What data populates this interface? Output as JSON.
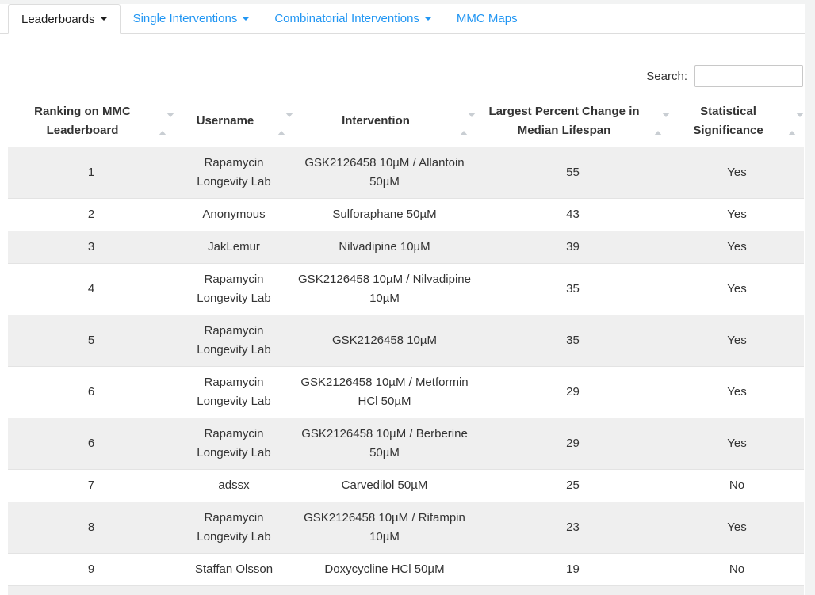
{
  "tabs": [
    {
      "label": "Leaderboards",
      "caret": true,
      "active": true
    },
    {
      "label": "Single Interventions",
      "caret": true,
      "active": false
    },
    {
      "label": "Combinatorial Interventions",
      "caret": true,
      "active": false
    },
    {
      "label": "MMC Maps",
      "caret": false,
      "active": false
    }
  ],
  "search": {
    "label": "Search:",
    "value": "",
    "placeholder": ""
  },
  "table": {
    "columns": [
      "Ranking on MMC Leaderboard",
      "Username",
      "Intervention",
      "Largest Percent Change in Median Lifespan",
      "Statistical Significance"
    ],
    "rows": [
      [
        "1",
        "Rapamycin Longevity Lab",
        "GSK2126458 10µM / Allantoin 50µM",
        "55",
        "Yes"
      ],
      [
        "2",
        "Anonymous",
        "Sulforaphane 50µM",
        "43",
        "Yes"
      ],
      [
        "3",
        "JakLemur",
        "Nilvadipine 10µM",
        "39",
        "Yes"
      ],
      [
        "4",
        "Rapamycin Longevity Lab",
        "GSK2126458 10µM / Nilvadipine 10µM",
        "35",
        "Yes"
      ],
      [
        "5",
        "Rapamycin Longevity Lab",
        "GSK2126458 10µM",
        "35",
        "Yes"
      ],
      [
        "6",
        "Rapamycin Longevity Lab",
        "GSK2126458 10µM / Metformin HCl 50µM",
        "29",
        "Yes"
      ],
      [
        "6",
        "Rapamycin Longevity Lab",
        "GSK2126458 10µM / Berberine 50µM",
        "29",
        "Yes"
      ],
      [
        "7",
        "adssx",
        "Carvedilol 50µM",
        "25",
        "No"
      ],
      [
        "8",
        "Rapamycin Longevity Lab",
        "GSK2126458 10µM / Rifampin 10µM",
        "23",
        "Yes"
      ],
      [
        "9",
        "Staffan Olsson",
        "Doxycycline HCl 50µM",
        "19",
        "No"
      ]
    ]
  },
  "colors": {
    "accent_blue": "#2196f3",
    "stripe_gray": "#efefef",
    "row_border": "#e3e3e3",
    "header_border": "#ccd3da",
    "tab_border": "#dddddd",
    "text_dark": "#333333",
    "sort_icon_gray": "#c9ced3",
    "gutter_gray": "#f2f3f3",
    "input_border": "#c8c8c8"
  }
}
